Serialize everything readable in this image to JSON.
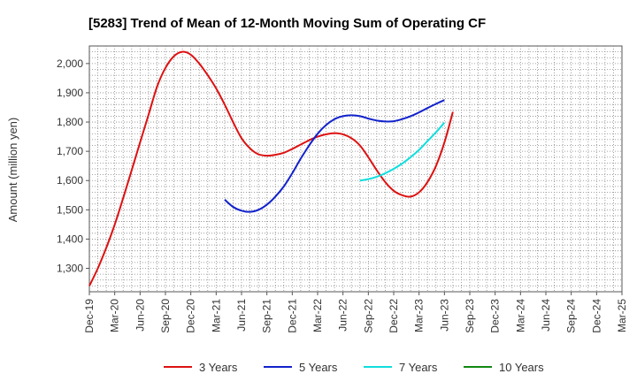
{
  "chart_data": {
    "type": "line",
    "title": "[5283]  Trend of Mean of 12-Month Moving Sum of Operating CF",
    "xlabel": "",
    "ylabel": "Amount (million yen)",
    "ylim": [
      1220,
      2060
    ],
    "yticks": [
      1300,
      1400,
      1500,
      1600,
      1700,
      1800,
      1900,
      2000
    ],
    "ytick_labels": [
      "1,300",
      "1,400",
      "1,500",
      "1,600",
      "1,700",
      "1,800",
      "1,900",
      "2,000"
    ],
    "x_tick_labels": [
      "Dec-19",
      "Mar-20",
      "Jun-20",
      "Sep-20",
      "Dec-20",
      "Mar-21",
      "Jun-21",
      "Sep-21",
      "Dec-21",
      "Mar-22",
      "Jun-22",
      "Sep-22",
      "Dec-22",
      "Mar-23",
      "Jun-23",
      "Sep-23",
      "Dec-23",
      "Mar-24",
      "Jun-24",
      "Sep-24",
      "Dec-24",
      "Mar-25"
    ],
    "grid": true,
    "series": [
      {
        "name": "3 Years",
        "color": "#dd1111",
        "points": [
          [
            0,
            1240
          ],
          [
            1,
            1300
          ],
          [
            2,
            1370
          ],
          [
            3,
            1450
          ],
          [
            4,
            1540
          ],
          [
            5,
            1635
          ],
          [
            6,
            1730
          ],
          [
            7,
            1825
          ],
          [
            8,
            1920
          ],
          [
            9,
            1985
          ],
          [
            10,
            2025
          ],
          [
            11,
            2040
          ],
          [
            12,
            2030
          ],
          [
            13,
            2000
          ],
          [
            14,
            1960
          ],
          [
            15,
            1915
          ],
          [
            16,
            1860
          ],
          [
            17,
            1800
          ],
          [
            18,
            1745
          ],
          [
            19,
            1710
          ],
          [
            20,
            1690
          ],
          [
            21,
            1685
          ],
          [
            22,
            1688
          ],
          [
            23,
            1695
          ],
          [
            24,
            1708
          ],
          [
            25,
            1723
          ],
          [
            26,
            1738
          ],
          [
            27,
            1750
          ],
          [
            28,
            1758
          ],
          [
            29,
            1762
          ],
          [
            30,
            1758
          ],
          [
            31,
            1745
          ],
          [
            32,
            1720
          ],
          [
            33,
            1680
          ],
          [
            34,
            1635
          ],
          [
            35,
            1595
          ],
          [
            36,
            1565
          ],
          [
            37,
            1550
          ],
          [
            38,
            1545
          ],
          [
            39,
            1560
          ],
          [
            40,
            1595
          ],
          [
            41,
            1650
          ],
          [
            42,
            1730
          ],
          [
            43,
            1835
          ]
        ]
      },
      {
        "name": "5 Years",
        "color": "#1122cc",
        "points": [
          [
            16,
            1535
          ],
          [
            17,
            1510
          ],
          [
            18,
            1497
          ],
          [
            19,
            1493
          ],
          [
            20,
            1500
          ],
          [
            21,
            1518
          ],
          [
            22,
            1545
          ],
          [
            23,
            1580
          ],
          [
            24,
            1625
          ],
          [
            25,
            1675
          ],
          [
            26,
            1720
          ],
          [
            27,
            1760
          ],
          [
            28,
            1790
          ],
          [
            29,
            1810
          ],
          [
            30,
            1820
          ],
          [
            31,
            1823
          ],
          [
            32,
            1820
          ],
          [
            33,
            1812
          ],
          [
            34,
            1805
          ],
          [
            35,
            1802
          ],
          [
            36,
            1803
          ],
          [
            37,
            1810
          ],
          [
            38,
            1820
          ],
          [
            39,
            1833
          ],
          [
            40,
            1848
          ],
          [
            41,
            1862
          ],
          [
            42,
            1875
          ]
        ]
      },
      {
        "name": "7 Years",
        "color": "#11dddd",
        "points": [
          [
            32,
            1600
          ],
          [
            33,
            1605
          ],
          [
            34,
            1613
          ],
          [
            35,
            1625
          ],
          [
            36,
            1640
          ],
          [
            37,
            1658
          ],
          [
            38,
            1680
          ],
          [
            39,
            1705
          ],
          [
            40,
            1735
          ],
          [
            41,
            1765
          ],
          [
            42,
            1798
          ]
        ]
      },
      {
        "name": "10 Years",
        "color": "#118811",
        "points": []
      }
    ]
  }
}
